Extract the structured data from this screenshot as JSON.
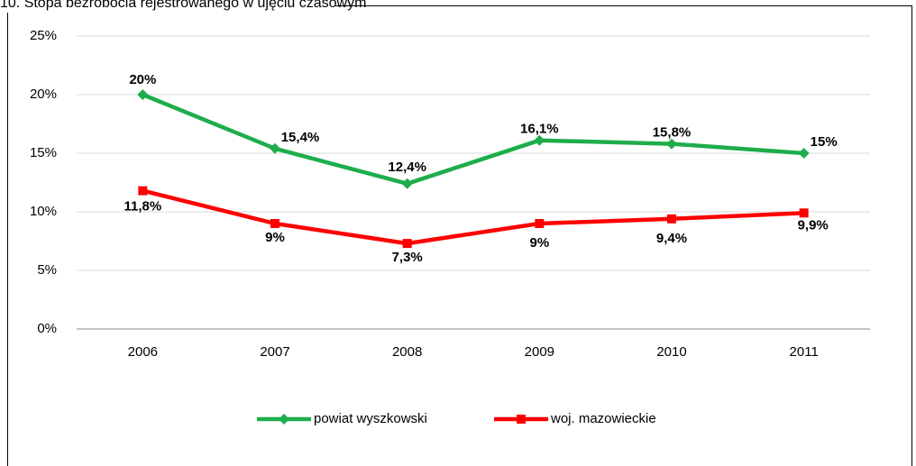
{
  "chart_data": {
    "type": "line",
    "title": "10. Stopa bezrobocia rejestrowanego w ujęciu czasowym",
    "categories": [
      "2006",
      "2007",
      "2008",
      "2009",
      "2010",
      "2011"
    ],
    "series": [
      {
        "name": "powiat wyszkowski",
        "color": "#1ead4b",
        "marker": "diamond",
        "values": [
          20,
          15.4,
          12.4,
          16.1,
          15.8,
          15
        ],
        "value_labels": [
          "20%",
          "15,4%",
          "12,4%",
          "16,1%",
          "15,8%",
          "15%"
        ]
      },
      {
        "name": "woj. mazowieckie",
        "color": "#ff0000",
        "marker": "square",
        "values": [
          11.8,
          9,
          7.3,
          9,
          9.4,
          9.9
        ],
        "value_labels": [
          "11,8%",
          "9%",
          "7,3%",
          "9%",
          "9,4%",
          "9,9%"
        ]
      }
    ],
    "ylim": [
      0,
      25
    ],
    "yticks": [
      {
        "value": 0,
        "label": "0%"
      },
      {
        "value": 5,
        "label": "5%"
      },
      {
        "value": 10,
        "label": "10%"
      },
      {
        "value": 15,
        "label": "15%"
      },
      {
        "value": 20,
        "label": "20%"
      },
      {
        "value": 25,
        "label": "25%"
      }
    ],
    "grid": true,
    "legend": "bottom"
  }
}
